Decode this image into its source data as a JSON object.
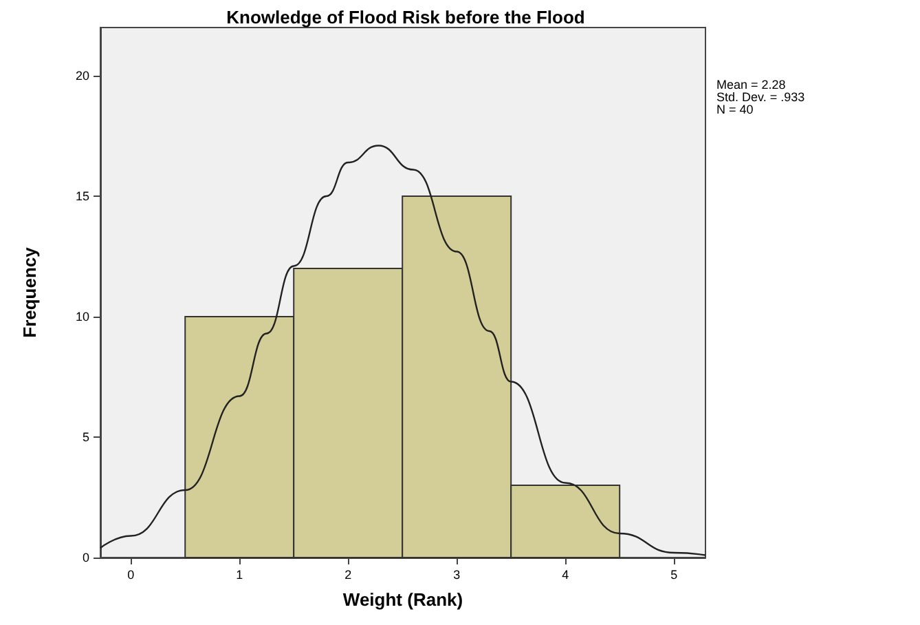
{
  "chart_data": {
    "type": "histogram",
    "title": "Knowledge of Flood Risk before the Flood",
    "xlabel": "Weight (Rank)",
    "ylabel": "Frequency",
    "bins": [
      0.5,
      1.5,
      2.5,
      3.5,
      4.5
    ],
    "values": [
      10,
      12,
      15,
      3
    ],
    "color": "#d3ce97",
    "series": [
      {
        "type": "line",
        "color": "#222222",
        "x": [
          -0.28,
          0,
          0.5,
          1,
          1.25,
          1.5,
          1.8,
          2,
          2.28,
          2.6,
          3,
          3.3,
          3.5,
          4,
          4.5,
          5,
          5.29
        ],
        "values": [
          0.4,
          0.9,
          2.8,
          6.7,
          9.3,
          12.1,
          15,
          16.4,
          17.1,
          16.1,
          12.7,
          9.4,
          7.3,
          3.1,
          1,
          0.2,
          0.1
        ]
      }
    ],
    "annotations": [
      "Mean = 2.28",
      "Std. Dev. = .933",
      "N = 40"
    ],
    "xlim": [
      -0.28,
      5.29
    ],
    "xticks": [
      0,
      1,
      2,
      3,
      4,
      5
    ],
    "ylim": [
      0,
      22
    ],
    "yticks": [
      0,
      5,
      10,
      15,
      20
    ],
    "grid": false,
    "marker": "none"
  }
}
